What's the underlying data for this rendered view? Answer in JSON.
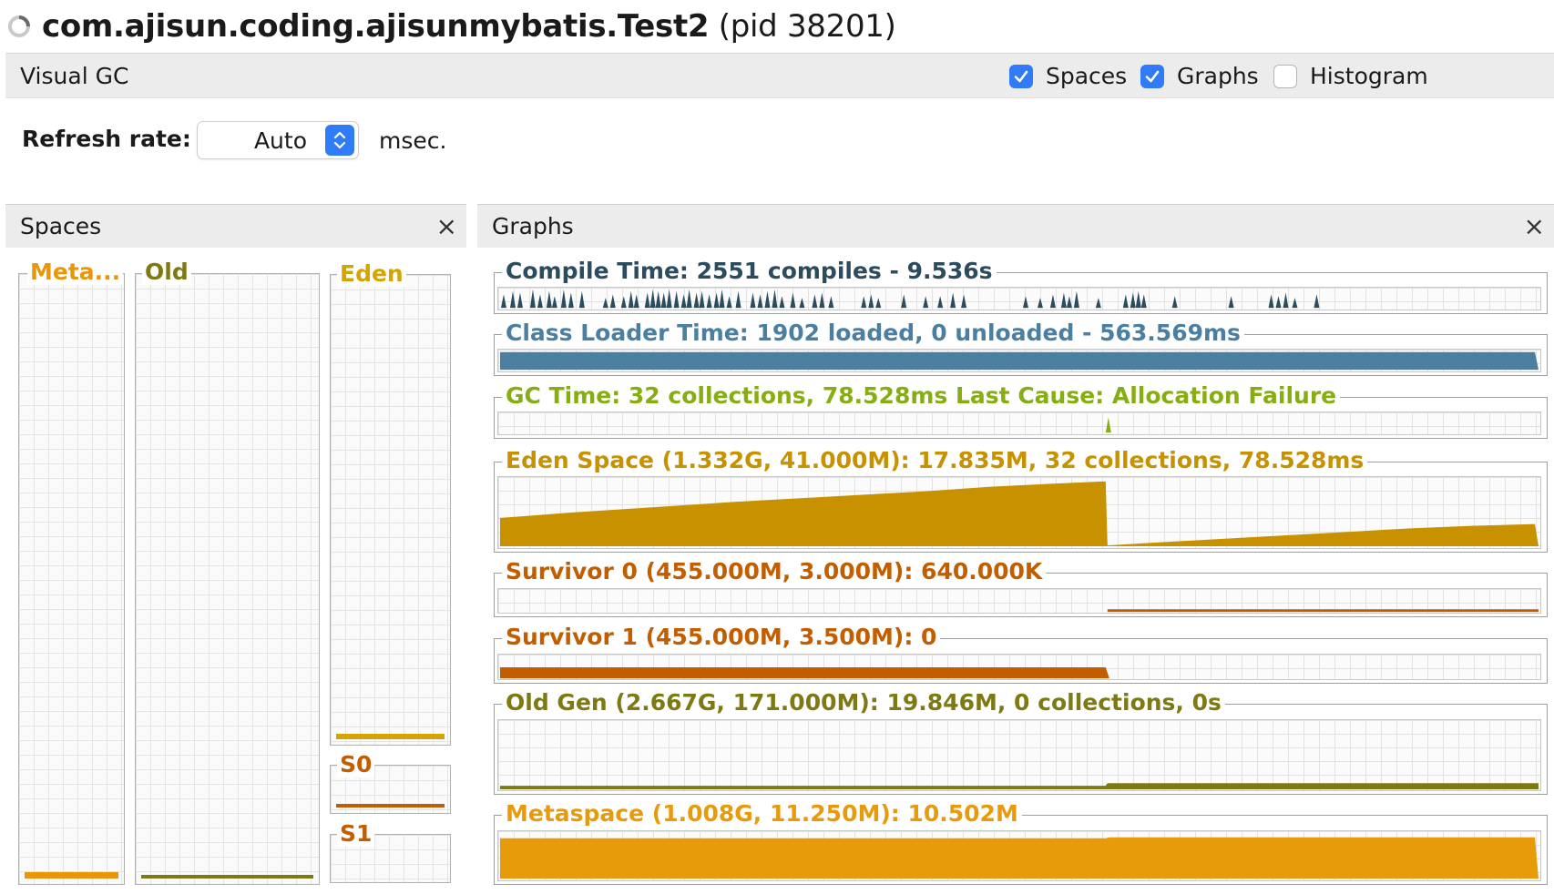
{
  "window": {
    "process_name": "com.ajisun.coding.ajisunmybatis.Test2",
    "pid_label": "(pid 38201)"
  },
  "toolbar": {
    "title": "Visual GC",
    "checkboxes": [
      {
        "label": "Spaces",
        "checked": true
      },
      {
        "label": "Graphs",
        "checked": true
      },
      {
        "label": "Histogram",
        "checked": false
      }
    ]
  },
  "refresh": {
    "label": "Refresh rate:",
    "value": "Auto",
    "unit": "msec."
  },
  "spaces_panel": {
    "title": "Spaces",
    "close": "×",
    "columns": [
      {
        "label": "Meta...",
        "color": "#e8970a",
        "fill": 0.01
      },
      {
        "label": "Old",
        "color": "#7d7a14",
        "fill": 0.005
      },
      {
        "label": "Eden",
        "color": "#d4a500",
        "fill": 0.012
      },
      {
        "label": "S0",
        "color": "#c25e00",
        "fill": 0.1
      },
      {
        "label": "S1",
        "color": "#c25e00",
        "fill": 0.0
      }
    ]
  },
  "graphs_panel": {
    "title": "Graphs",
    "close": "×",
    "graphs": [
      {
        "key": "compile",
        "label": "Compile Time: 2551 compiles - 9.536s",
        "color": "#2b4b5e"
      },
      {
        "key": "classloader",
        "label": "Class Loader Time: 1902 loaded, 0 unloaded - 563.569ms",
        "color": "#4a7fa1"
      },
      {
        "key": "gc",
        "label": "GC Time: 32 collections, 78.528ms Last Cause: Allocation Failure",
        "color": "#86ad11"
      },
      {
        "key": "eden",
        "label": "Eden Space (1.332G, 41.000M): 17.835M, 32 collections, 78.528ms",
        "color": "#c79100"
      },
      {
        "key": "s0",
        "label": "Survivor 0 (455.000M, 3.000M): 640.000K",
        "color": "#c25e00"
      },
      {
        "key": "s1",
        "label": "Survivor 1 (455.000M, 3.500M): 0",
        "color": "#c25e00"
      },
      {
        "key": "old",
        "label": "Old Gen (2.667G, 171.000M): 19.846M, 0 collections, 0s",
        "color": "#7d7a14"
      },
      {
        "key": "meta",
        "label": "Metaspace (1.008G, 11.250M): 10.502M",
        "color": "#e89b0a"
      }
    ]
  },
  "icons": {
    "spinner": "loading-spinner-icon",
    "checkmark": "checkmark-icon",
    "stepper": "up-down-chevron-icon",
    "close": "close-icon"
  }
}
